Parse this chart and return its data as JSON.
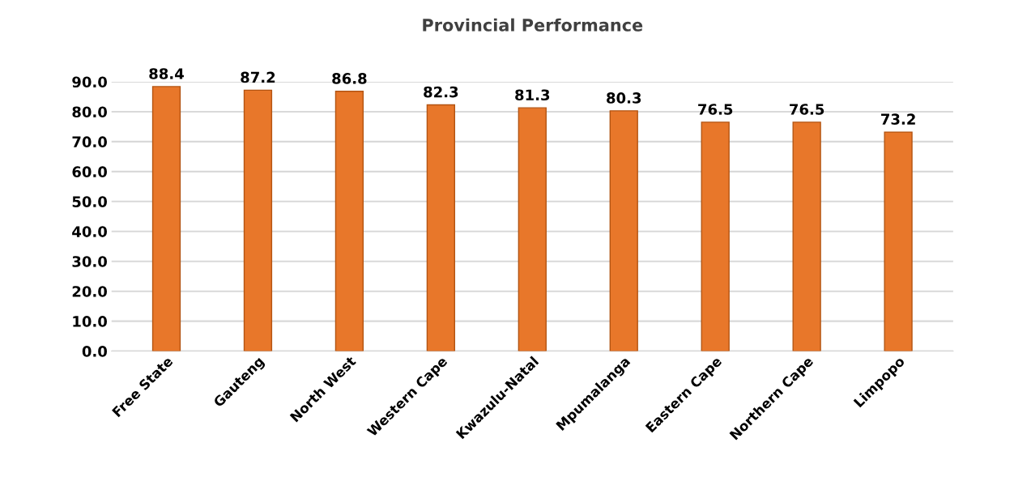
{
  "chart_data": {
    "type": "bar",
    "title": "Provincial Performance",
    "categories": [
      "Free State",
      "Gauteng",
      "North West",
      "Western Cape",
      "Kwazulu-Natal",
      "Mpumalanga",
      "Eastern Cape",
      "Northern Cape",
      "Limpopo"
    ],
    "values": [
      88.4,
      87.2,
      86.8,
      82.3,
      81.3,
      80.3,
      76.5,
      76.5,
      73.2
    ],
    "color": "#e8772a",
    "ylim": [
      0,
      90
    ],
    "yticks": [
      {
        "value": 0,
        "label": "0.0"
      },
      {
        "value": 10,
        "label": "10.0"
      },
      {
        "value": 20,
        "label": "20.0"
      },
      {
        "value": 30,
        "label": "30.0"
      },
      {
        "value": 40,
        "label": "40.0"
      },
      {
        "value": 50,
        "label": "50.0"
      },
      {
        "value": 60,
        "label": "60.0"
      },
      {
        "value": 70,
        "label": "70.0"
      },
      {
        "value": 80,
        "label": "80.0"
      },
      {
        "value": 90,
        "label": "90.0"
      }
    ],
    "grid": "y",
    "data_labels": true
  }
}
